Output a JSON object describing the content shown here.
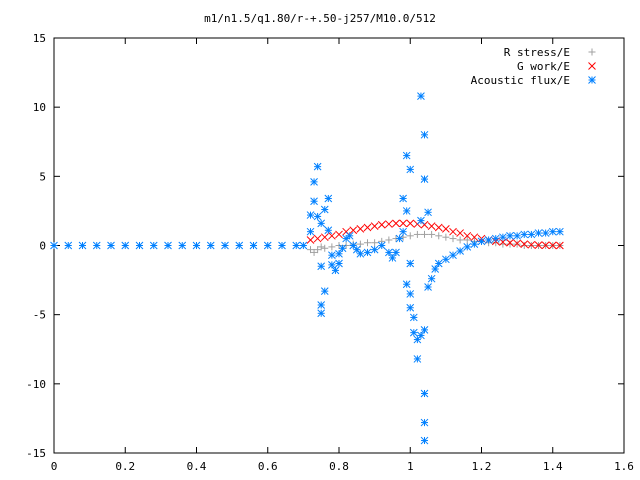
{
  "chart_data": {
    "type": "scatter",
    "title": "m1/n1.5/q1.80/r-+.50-j257/M10.0/512",
    "xlabel": "",
    "ylabel": "",
    "xlim": [
      0,
      1.6
    ],
    "ylim": [
      -15,
      15
    ],
    "xticks": [
      "0",
      "0.2",
      "0.4",
      "0.6",
      "0.8",
      "1",
      "1.2",
      "1.4",
      "1.6"
    ],
    "yticks": [
      "15",
      "10",
      "5",
      "0",
      "-5",
      "-10",
      "-15"
    ],
    "grid": false,
    "legend_position": "top-right",
    "series": [
      {
        "name": "R stress/E",
        "marker": "plus",
        "color": "#a0a0a0",
        "points": [
          [
            0.72,
            -0.3
          ],
          [
            0.73,
            -0.5
          ],
          [
            0.74,
            -0.3
          ],
          [
            0.75,
            -0.1
          ],
          [
            0.76,
            -0.2
          ],
          [
            0.78,
            -0.1
          ],
          [
            0.8,
            0.0
          ],
          [
            0.82,
            0.0
          ],
          [
            0.84,
            0.1
          ],
          [
            0.86,
            0.1
          ],
          [
            0.88,
            0.2
          ],
          [
            0.9,
            0.2
          ],
          [
            0.92,
            0.3
          ],
          [
            0.94,
            0.4
          ],
          [
            0.96,
            0.5
          ],
          [
            0.98,
            0.6
          ],
          [
            1.0,
            0.7
          ],
          [
            1.02,
            0.8
          ],
          [
            1.04,
            0.8
          ],
          [
            1.06,
            0.8
          ],
          [
            1.08,
            0.7
          ],
          [
            1.1,
            0.6
          ],
          [
            1.12,
            0.5
          ],
          [
            1.14,
            0.4
          ],
          [
            1.16,
            0.4
          ],
          [
            1.18,
            0.3
          ],
          [
            1.2,
            0.3
          ],
          [
            1.22,
            0.2
          ],
          [
            1.24,
            0.2
          ],
          [
            1.26,
            0.1
          ],
          [
            1.28,
            0.1
          ],
          [
            1.3,
            0.1
          ],
          [
            1.32,
            0.0
          ],
          [
            1.34,
            0.0
          ],
          [
            1.36,
            0.0
          ],
          [
            1.38,
            0.0
          ],
          [
            1.4,
            0.0
          ],
          [
            1.42,
            0.0
          ]
        ]
      },
      {
        "name": "G work/E",
        "marker": "cross",
        "color": "#ff0000",
        "points": [
          [
            0.72,
            0.4
          ],
          [
            0.74,
            0.5
          ],
          [
            0.76,
            0.6
          ],
          [
            0.78,
            0.7
          ],
          [
            0.8,
            0.8
          ],
          [
            0.82,
            1.0
          ],
          [
            0.84,
            1.1
          ],
          [
            0.86,
            1.2
          ],
          [
            0.88,
            1.3
          ],
          [
            0.9,
            1.4
          ],
          [
            0.92,
            1.5
          ],
          [
            0.94,
            1.55
          ],
          [
            0.96,
            1.6
          ],
          [
            0.98,
            1.6
          ],
          [
            1.0,
            1.6
          ],
          [
            1.02,
            1.55
          ],
          [
            1.04,
            1.5
          ],
          [
            1.06,
            1.4
          ],
          [
            1.08,
            1.3
          ],
          [
            1.1,
            1.2
          ],
          [
            1.12,
            1.0
          ],
          [
            1.14,
            0.9
          ],
          [
            1.16,
            0.7
          ],
          [
            1.18,
            0.6
          ],
          [
            1.2,
            0.5
          ],
          [
            1.22,
            0.4
          ],
          [
            1.24,
            0.3
          ],
          [
            1.26,
            0.25
          ],
          [
            1.28,
            0.2
          ],
          [
            1.3,
            0.15
          ],
          [
            1.32,
            0.1
          ],
          [
            1.34,
            0.05
          ],
          [
            1.36,
            0.03
          ],
          [
            1.38,
            0.02
          ],
          [
            1.4,
            0.01
          ],
          [
            1.42,
            0.0
          ]
        ]
      },
      {
        "name": "Acoustic flux/E",
        "marker": "star",
        "color": "#0080ff",
        "points": [
          [
            0.0,
            0.0
          ],
          [
            0.04,
            0.0
          ],
          [
            0.08,
            0.0
          ],
          [
            0.12,
            0.0
          ],
          [
            0.16,
            0.0
          ],
          [
            0.2,
            0.0
          ],
          [
            0.24,
            0.0
          ],
          [
            0.28,
            0.0
          ],
          [
            0.32,
            0.0
          ],
          [
            0.36,
            0.0
          ],
          [
            0.4,
            0.0
          ],
          [
            0.44,
            0.0
          ],
          [
            0.48,
            0.0
          ],
          [
            0.52,
            0.0
          ],
          [
            0.56,
            0.0
          ],
          [
            0.6,
            0.0
          ],
          [
            0.64,
            0.0
          ],
          [
            0.68,
            0.0
          ],
          [
            0.7,
            0.0
          ],
          [
            0.72,
            1.0
          ],
          [
            0.72,
            2.2
          ],
          [
            0.73,
            3.2
          ],
          [
            0.73,
            4.6
          ],
          [
            0.74,
            5.7
          ],
          [
            0.74,
            2.1
          ],
          [
            0.75,
            1.6
          ],
          [
            0.75,
            -1.5
          ],
          [
            0.76,
            -3.3
          ],
          [
            0.75,
            -4.3
          ],
          [
            0.75,
            -4.9
          ],
          [
            0.76,
            2.6
          ],
          [
            0.77,
            3.4
          ],
          [
            0.77,
            1.1
          ],
          [
            0.78,
            -0.7
          ],
          [
            0.78,
            -1.4
          ],
          [
            0.79,
            -1.8
          ],
          [
            0.8,
            -1.3
          ],
          [
            0.8,
            -0.6
          ],
          [
            0.81,
            -0.2
          ],
          [
            0.82,
            0.5
          ],
          [
            0.83,
            0.7
          ],
          [
            0.84,
            0.0
          ],
          [
            0.85,
            -0.3
          ],
          [
            0.86,
            -0.6
          ],
          [
            0.88,
            -0.5
          ],
          [
            0.9,
            -0.3
          ],
          [
            0.92,
            0.0
          ],
          [
            0.94,
            -0.5
          ],
          [
            0.95,
            -0.9
          ],
          [
            0.96,
            -0.5
          ],
          [
            0.97,
            0.5
          ],
          [
            0.98,
            1.0
          ],
          [
            0.98,
            3.4
          ],
          [
            0.99,
            6.5
          ],
          [
            1.0,
            5.5
          ],
          [
            0.99,
            2.5
          ],
          [
            1.0,
            -1.3
          ],
          [
            0.99,
            -2.8
          ],
          [
            1.0,
            -3.5
          ],
          [
            1.0,
            -4.5
          ],
          [
            1.01,
            -5.2
          ],
          [
            1.01,
            -6.3
          ],
          [
            1.02,
            -6.8
          ],
          [
            1.02,
            -8.2
          ],
          [
            1.03,
            -6.5
          ],
          [
            1.03,
            1.8
          ],
          [
            1.03,
            10.8
          ],
          [
            1.04,
            8.0
          ],
          [
            1.04,
            4.8
          ],
          [
            1.05,
            2.4
          ],
          [
            1.05,
            -3.0
          ],
          [
            1.04,
            -6.1
          ],
          [
            1.04,
            -10.7
          ],
          [
            1.04,
            -12.8
          ],
          [
            1.04,
            -14.1
          ],
          [
            1.06,
            -2.4
          ],
          [
            1.07,
            -1.7
          ],
          [
            1.08,
            -1.3
          ],
          [
            1.1,
            -1.0
          ],
          [
            1.12,
            -0.7
          ],
          [
            1.14,
            -0.4
          ],
          [
            1.16,
            -0.1
          ],
          [
            1.18,
            0.1
          ],
          [
            1.2,
            0.3
          ],
          [
            1.22,
            0.4
          ],
          [
            1.24,
            0.5
          ],
          [
            1.26,
            0.6
          ],
          [
            1.28,
            0.7
          ],
          [
            1.3,
            0.7
          ],
          [
            1.32,
            0.8
          ],
          [
            1.34,
            0.8
          ],
          [
            1.36,
            0.9
          ],
          [
            1.38,
            0.9
          ],
          [
            1.4,
            1.0
          ],
          [
            1.42,
            1.0
          ]
        ]
      }
    ]
  }
}
